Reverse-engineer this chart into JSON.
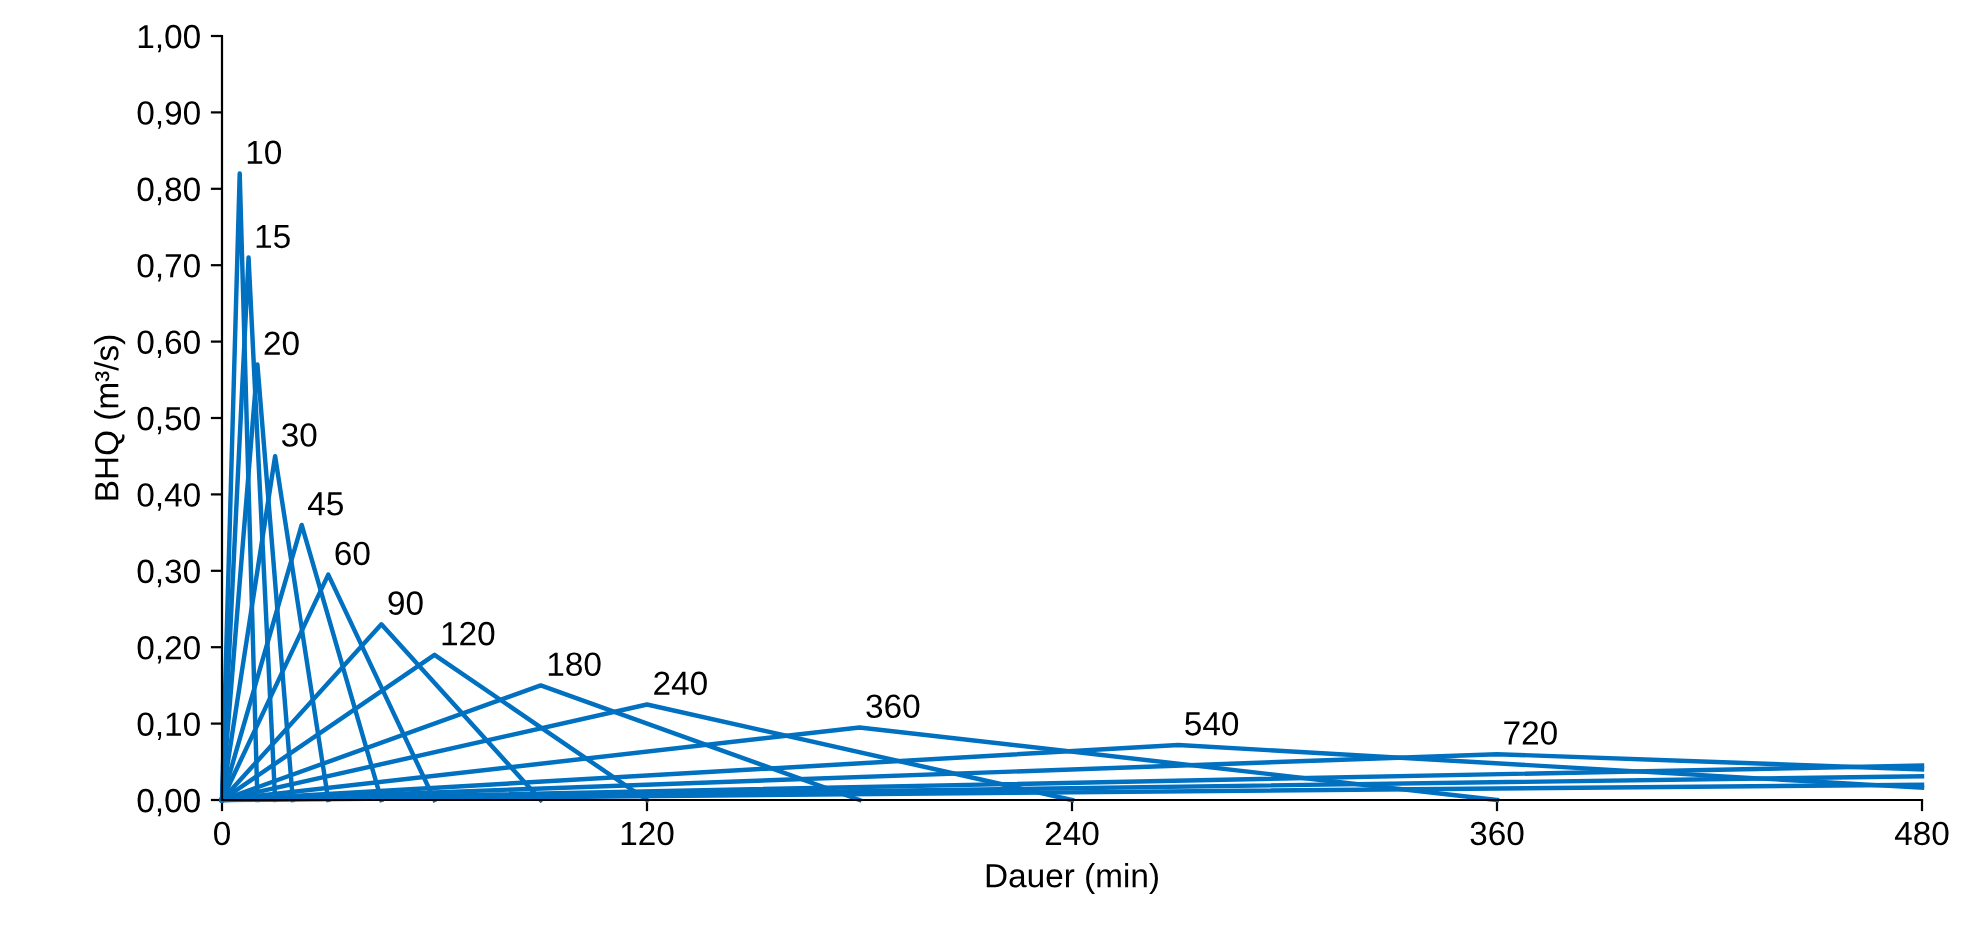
{
  "chart_data": {
    "type": "line",
    "xlabel": "Dauer (min)",
    "ylabel": "BHQ (m³/s)",
    "xlim": [
      0,
      480
    ],
    "xticks": [
      0,
      120,
      240,
      360,
      480
    ],
    "ylim": [
      0,
      1
    ],
    "yticks": [
      {
        "value": 0,
        "label": "0,00"
      },
      {
        "value": 0.1,
        "label": "0,10"
      },
      {
        "value": 0.2,
        "label": "0,20"
      },
      {
        "value": 0.3,
        "label": "0,30"
      },
      {
        "value": 0.4,
        "label": "0,40"
      },
      {
        "value": 0.5,
        "label": "0,50"
      },
      {
        "value": 0.6,
        "label": "0,60"
      },
      {
        "value": 0.7,
        "label": "0,70"
      },
      {
        "value": 0.8,
        "label": "0,80"
      },
      {
        "value": 0.9,
        "label": "0,90"
      },
      {
        "value": 1,
        "label": "1,00"
      }
    ],
    "grid": false,
    "marker": "none",
    "line_style": "solid",
    "series": [
      {
        "name": "10",
        "color": "#0070c0",
        "x": [
          0,
          5,
          10
        ],
        "values": [
          0,
          0.82,
          0
        ]
      },
      {
        "name": "15",
        "color": "#0070c0",
        "x": [
          0,
          7.5,
          15
        ],
        "values": [
          0,
          0.71,
          0
        ]
      },
      {
        "name": "20",
        "color": "#0070c0",
        "x": [
          0,
          10,
          20
        ],
        "values": [
          0,
          0.57,
          0
        ]
      },
      {
        "name": "30",
        "color": "#0070c0",
        "x": [
          0,
          15,
          30
        ],
        "values": [
          0,
          0.45,
          0
        ]
      },
      {
        "name": "45",
        "color": "#0070c0",
        "x": [
          0,
          22.5,
          45
        ],
        "values": [
          0,
          0.36,
          0
        ]
      },
      {
        "name": "60",
        "color": "#0070c0",
        "x": [
          0,
          30,
          60
        ],
        "values": [
          0,
          0.295,
          0
        ]
      },
      {
        "name": "90",
        "color": "#0070c0",
        "x": [
          0,
          45,
          90
        ],
        "values": [
          0,
          0.23,
          0
        ]
      },
      {
        "name": "120",
        "color": "#0070c0",
        "x": [
          0,
          60,
          120
        ],
        "values": [
          0,
          0.19,
          0
        ]
      },
      {
        "name": "180",
        "color": "#0070c0",
        "x": [
          0,
          90,
          180
        ],
        "values": [
          0,
          0.15,
          0
        ]
      },
      {
        "name": "240",
        "color": "#0070c0",
        "x": [
          0,
          120,
          240
        ],
        "values": [
          0,
          0.125,
          0
        ]
      },
      {
        "name": "360",
        "color": "#0070c0",
        "x": [
          0,
          180,
          360
        ],
        "values": [
          0,
          0.095,
          0
        ]
      },
      {
        "name": "540",
        "color": "#0070c0",
        "x": [
          0,
          270,
          480
        ],
        "values": [
          0,
          0.072,
          0.016
        ]
      },
      {
        "name": "720",
        "color": "#0070c0",
        "x": [
          0,
          360,
          480
        ],
        "values": [
          0,
          0.06,
          0.04
        ]
      },
      {
        "color": "#0070c0",
        "x": [
          0,
          480
        ],
        "values": [
          0,
          0.045
        ]
      },
      {
        "color": "#0070c0",
        "x": [
          0,
          480
        ],
        "values": [
          0,
          0.031
        ]
      },
      {
        "color": "#0070c0",
        "x": [
          0,
          480
        ],
        "values": [
          0,
          0.02
        ]
      }
    ]
  }
}
